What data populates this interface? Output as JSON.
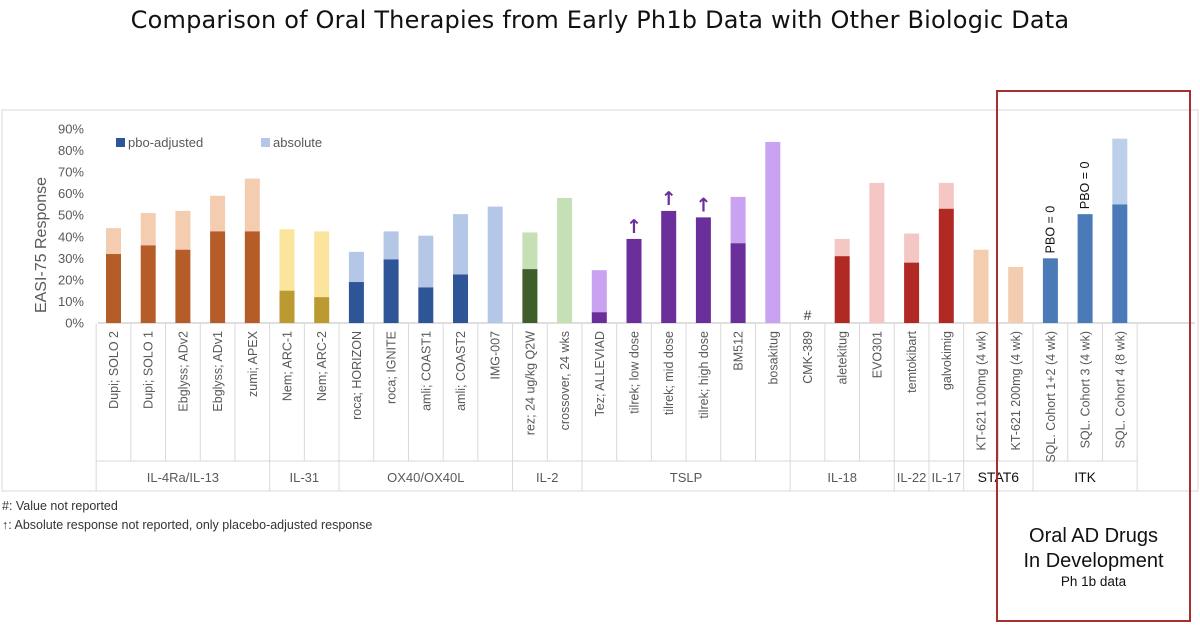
{
  "chart_data": {
    "type": "bar",
    "title": "Comparison of Oral Therapies from Early Ph1b Data with Other Biologic Data",
    "ylabel": "EASI-75 Response",
    "ylim": [
      0,
      90
    ],
    "y_ticks": [
      "0%",
      "10%",
      "20%",
      "30%",
      "40%",
      "50%",
      "60%",
      "70%",
      "80%",
      "90%"
    ],
    "grid": false,
    "legend_position": "top-left",
    "legend": [
      {
        "name": "pbo-adjusted",
        "color": "#2e5597"
      },
      {
        "name": "absolute",
        "color": "#b4c7e7"
      }
    ],
    "categories": [
      "Dupi; SOLO 2",
      "Dupi; SOLO 1",
      "Ebglyss; ADv2",
      "Ebglyss; ADv1",
      "zumi; APEX",
      "Nem; ARC-1",
      "Nem; ARC-2",
      "roca; HORIZON",
      "roca; IGNITE",
      "amli; COAST1",
      "amli; COAST2",
      "IMG-007",
      "rez; 24 ug/kg Q2W",
      "crossover, 24 wks",
      "Tez; ALLEVIAD",
      "tilrek; low dose",
      "tilrek; mid dose",
      "tilrek; high dose",
      "BM512",
      "bosakitug",
      "CMK-389",
      "aletekitug",
      "EVO301",
      "temtokibart",
      "galvokimig",
      "KT-621 100mg (4 wk)",
      "KT-621 200mg (4 wk)",
      "SQL. Cohort 1+2 (4 wk)",
      "SQL. Cohort 3 (4 wk)",
      "SQL. Cohort 4 (8 wk)"
    ],
    "series": [
      {
        "name": "pbo-adjusted",
        "values": [
          32,
          36,
          34,
          42.5,
          42.5,
          15,
          12,
          19,
          29.5,
          16.5,
          22.5,
          null,
          25,
          null,
          5,
          39,
          52,
          49,
          37,
          null,
          null,
          31,
          null,
          28,
          53,
          null,
          null,
          30,
          50.5,
          55
        ]
      },
      {
        "name": "absolute",
        "values": [
          44,
          51,
          52,
          59,
          67,
          43.5,
          42.5,
          33,
          42.5,
          40.5,
          50.5,
          54,
          42,
          58,
          24.5,
          null,
          null,
          null,
          58.5,
          84,
          null,
          39,
          65,
          41.5,
          65,
          34,
          26,
          null,
          null,
          85.5
        ]
      }
    ],
    "bar_colors": [
      {
        "pbo": "#b65c29",
        "abs": "#f4ccaf"
      },
      {
        "pbo": "#b65c29",
        "abs": "#f4ccaf"
      },
      {
        "pbo": "#b65c29",
        "abs": "#f4ccaf"
      },
      {
        "pbo": "#b65c29",
        "abs": "#f4ccaf"
      },
      {
        "pbo": "#b65c29",
        "abs": "#f4ccaf"
      },
      {
        "pbo": "#bb9a32",
        "abs": "#fbe59d"
      },
      {
        "pbo": "#bb9a32",
        "abs": "#fbe59d"
      },
      {
        "pbo": "#2e5597",
        "abs": "#b4c7e7"
      },
      {
        "pbo": "#2e5597",
        "abs": "#b4c7e7"
      },
      {
        "pbo": "#2e5597",
        "abs": "#b4c7e7"
      },
      {
        "pbo": "#2e5597",
        "abs": "#b4c7e7"
      },
      {
        "pbo": "#2e5597",
        "abs": "#b4c7e7"
      },
      {
        "pbo": "#3f5e2a",
        "abs": "#c5e0b4"
      },
      {
        "pbo": "#3f5e2a",
        "abs": "#c5e0b4"
      },
      {
        "pbo": "#6a2f9b",
        "abs": "#c9a3f2"
      },
      {
        "pbo": "#6a2f9b",
        "abs": "#c9a3f2"
      },
      {
        "pbo": "#6a2f9b",
        "abs": "#c9a3f2"
      },
      {
        "pbo": "#6a2f9b",
        "abs": "#c9a3f2"
      },
      {
        "pbo": "#6a2f9b",
        "abs": "#c9a3f2"
      },
      {
        "pbo": "#6a2f9b",
        "abs": "#c9a3f2"
      },
      {
        "pbo": "#b02a23",
        "abs": "#f4c6c4"
      },
      {
        "pbo": "#b02a23",
        "abs": "#f4c6c4"
      },
      {
        "pbo": "#b02a23",
        "abs": "#f4c6c4"
      },
      {
        "pbo": "#b02a23",
        "abs": "#f4c6c4"
      },
      {
        "pbo": "#b02a23",
        "abs": "#f4c6c4"
      },
      {
        "pbo": "#b65c29",
        "abs": "#f4ccaf"
      },
      {
        "pbo": "#b65c29",
        "abs": "#f4ccaf"
      },
      {
        "pbo": "#4a7ab8",
        "abs": "#bdd0ea"
      },
      {
        "pbo": "#4a7ab8",
        "abs": "#bdd0ea"
      },
      {
        "pbo": "#4a7ab8",
        "abs": "#bdd0ea"
      }
    ],
    "markers": [
      {
        "index": 20,
        "symbol": "#"
      },
      {
        "index": 15,
        "symbol": "↑"
      },
      {
        "index": 16,
        "symbol": "↑"
      },
      {
        "index": 17,
        "symbol": "↑"
      }
    ],
    "bar_annotations": [
      {
        "index": 27,
        "text": "PBO = 0"
      },
      {
        "index": 28,
        "text": "PBO = 0"
      }
    ],
    "groups": [
      {
        "label": "IL-4Ra/IL-13",
        "start": 0,
        "end": 4
      },
      {
        "label": "IL-31",
        "start": 5,
        "end": 6
      },
      {
        "label": "OX40/OX40L",
        "start": 7,
        "end": 11
      },
      {
        "label": "IL-2",
        "start": 12,
        "end": 13
      },
      {
        "label": "TSLP",
        "start": 14,
        "end": 19
      },
      {
        "label": "IL-18",
        "start": 20,
        "end": 22
      },
      {
        "label": "IL-22",
        "start": 23,
        "end": 23
      },
      {
        "label": "IL-17",
        "start": 24,
        "end": 24
      },
      {
        "label": "STAT6",
        "start": 25,
        "end": 26
      },
      {
        "label": "ITK",
        "start": 27,
        "end": 29
      }
    ]
  },
  "notes": {
    "hash_note": "#: Value not reported",
    "arrow_note": "↑: Absolute response not reported, only placebo-adjusted response"
  },
  "oral_box": {
    "line1": "Oral AD Drugs",
    "line2": "In Development",
    "line3": "Ph 1b data",
    "border_color": "#a5302e"
  }
}
